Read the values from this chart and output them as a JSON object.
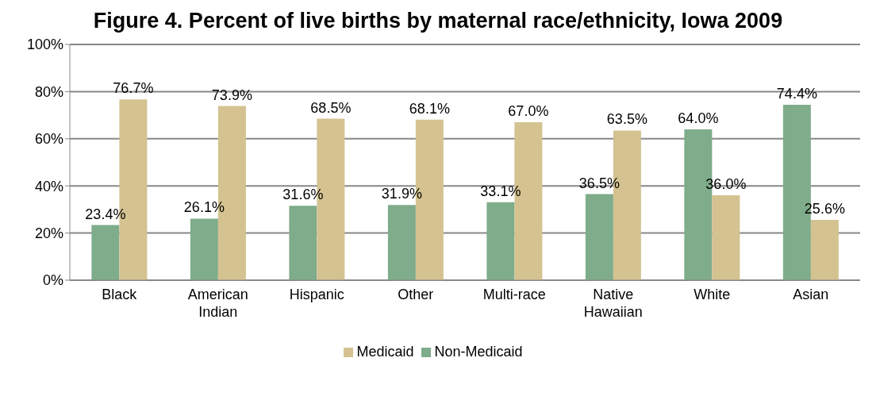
{
  "chart_data": {
    "type": "bar",
    "title": "Figure 4. Percent of live births by maternal race/ethnicity, Iowa 2009",
    "categories": [
      "Black",
      "American Indian",
      "Hispanic",
      "Other",
      "Multi-race",
      "Native Hawaiian",
      "White",
      "Asian"
    ],
    "series": [
      {
        "name": "Non-Medicaid",
        "color": "#7fac8a",
        "values": [
          23.4,
          26.1,
          31.6,
          31.9,
          33.1,
          36.5,
          64.0,
          74.4
        ],
        "value_labels": [
          "23.4%",
          "26.1%",
          "31.6%",
          "31.9%",
          "33.1%",
          "36.5%",
          "64.0%",
          "74.4%"
        ]
      },
      {
        "name": "Medicaid",
        "color": "#d4c290",
        "values": [
          76.7,
          73.9,
          68.5,
          68.1,
          67.0,
          63.5,
          36.0,
          25.6
        ],
        "value_labels": [
          "76.7%",
          "73.9%",
          "68.5%",
          "68.1%",
          "67.0%",
          "63.5%",
          "36.0%",
          "25.6%"
        ]
      }
    ],
    "ylim": [
      0,
      100
    ],
    "yticks": [
      {
        "value": 0,
        "label": "0%"
      },
      {
        "value": 20,
        "label": "20%"
      },
      {
        "value": 40,
        "label": "40%"
      },
      {
        "value": 60,
        "label": "60%"
      },
      {
        "value": 80,
        "label": "80%"
      },
      {
        "value": 100,
        "label": "100%"
      }
    ],
    "grid": "y",
    "legend": "bottom"
  }
}
